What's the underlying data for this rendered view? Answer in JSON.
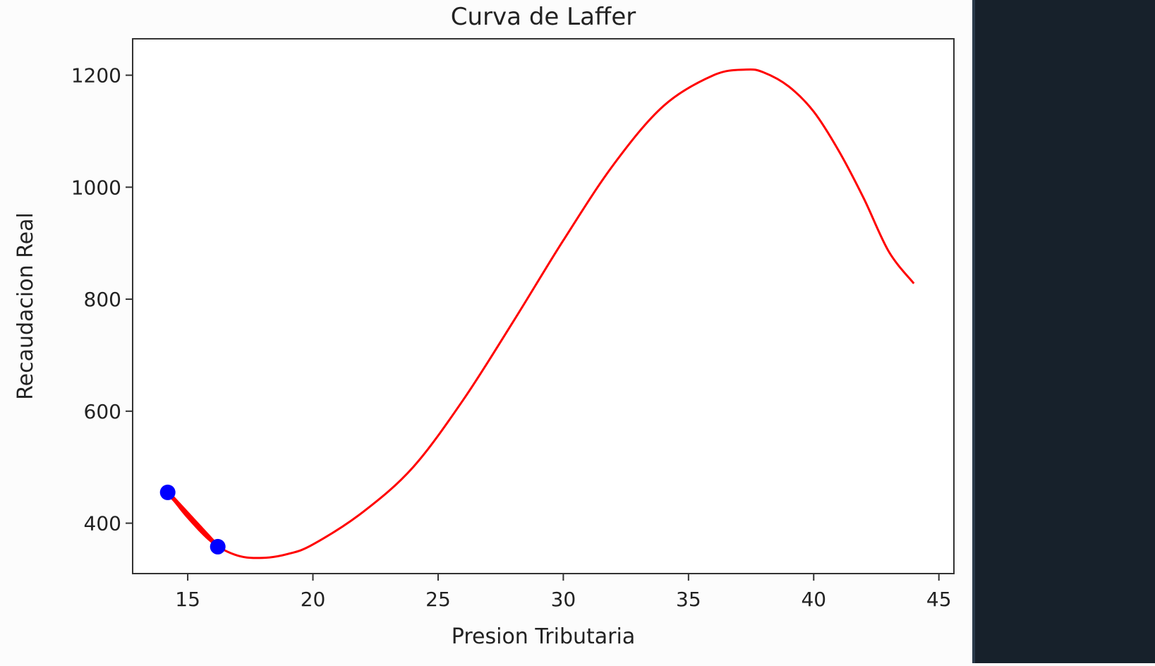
{
  "chart_data": {
    "type": "line",
    "title": "Curva de Laffer",
    "xlabel": "Presion Tributaria",
    "ylabel": "Recaudacion Real",
    "xlim": [
      12.8,
      45.6
    ],
    "ylim": [
      310,
      1265
    ],
    "xticks": [
      15,
      20,
      25,
      30,
      35,
      40,
      45
    ],
    "yticks": [
      400,
      600,
      800,
      1000,
      1200
    ],
    "grid": false,
    "series": [
      {
        "type": "line",
        "color": "#ff0000",
        "x": [
          14.2,
          15.0,
          16.0,
          17.0,
          18.0,
          19.0,
          20.0,
          22.0,
          24.0,
          26.0,
          28.0,
          30.0,
          32.0,
          34.0,
          36.0,
          37.3,
          38.0,
          39.0,
          40.0,
          41.0,
          42.0,
          43.0,
          44.0
        ],
        "y": [
          455,
          410,
          365,
          342,
          338,
          345,
          362,
          420,
          500,
          620,
          760,
          905,
          1040,
          1145,
          1200,
          1210,
          1205,
          1180,
          1135,
          1065,
          980,
          885,
          828
        ]
      },
      {
        "type": "line",
        "color": "#ff0000",
        "x": [
          14.2,
          16.2
        ],
        "y": [
          455,
          358
        ]
      },
      {
        "type": "scatter",
        "color": "#0000ff",
        "x": [
          14.2,
          16.2
        ],
        "y": [
          455,
          358
        ]
      }
    ]
  }
}
